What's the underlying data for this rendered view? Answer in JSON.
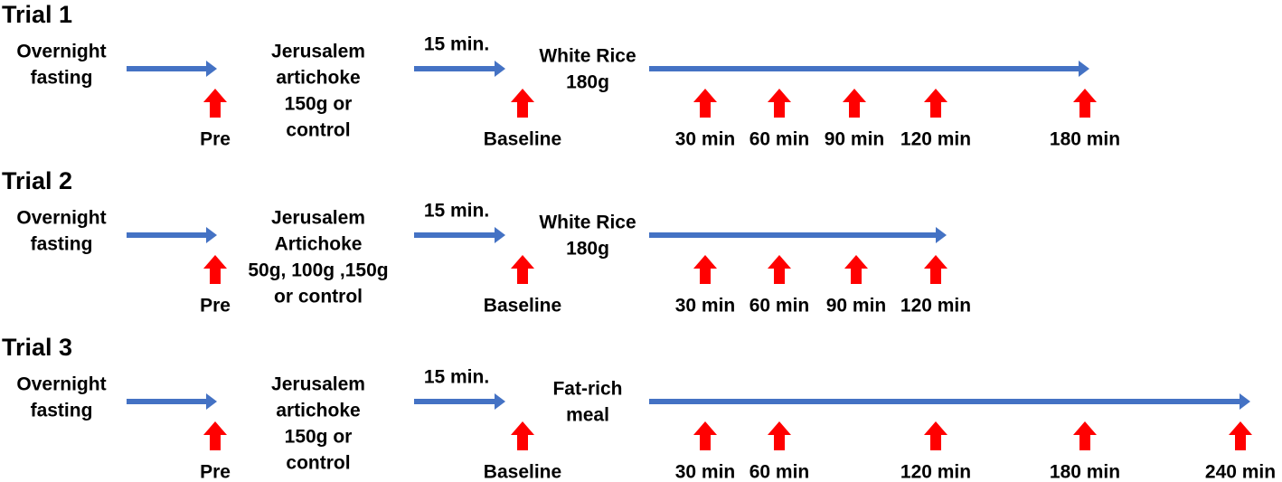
{
  "trials": [
    {
      "title": "Trial 1",
      "start": [
        "Overnight",
        "fasting"
      ],
      "pre": "Pre",
      "intervention": [
        "Jerusalem",
        "artichoke",
        "150g or",
        "control"
      ],
      "interval": "15 min.",
      "meal": [
        "White Rice",
        "180g"
      ],
      "baseline": "Baseline",
      "timepoints": [
        "30 min",
        "60 min",
        "90 min",
        "120 min",
        "180 min"
      ]
    },
    {
      "title": "Trial 2",
      "start": [
        "Overnight",
        "fasting"
      ],
      "pre": "Pre",
      "intervention": [
        "Jerusalem",
        "Artichoke",
        "50g, 100g ,150g",
        "or control"
      ],
      "interval": "15 min.",
      "meal": [
        "White Rice",
        "180g"
      ],
      "baseline": "Baseline",
      "timepoints": [
        "30 min",
        "60 min",
        "90 min",
        "120 min"
      ]
    },
    {
      "title": "Trial 3",
      "start": [
        "Overnight",
        "fasting"
      ],
      "pre": "Pre",
      "intervention": [
        "Jerusalem",
        "artichoke",
        "150g or",
        "control"
      ],
      "interval": "15 min.",
      "meal": [
        "Fat-rich",
        "meal"
      ],
      "baseline": "Baseline",
      "timepoints": [
        "30 min",
        "60 min",
        "120 min",
        "180 min",
        "240 min"
      ]
    }
  ]
}
